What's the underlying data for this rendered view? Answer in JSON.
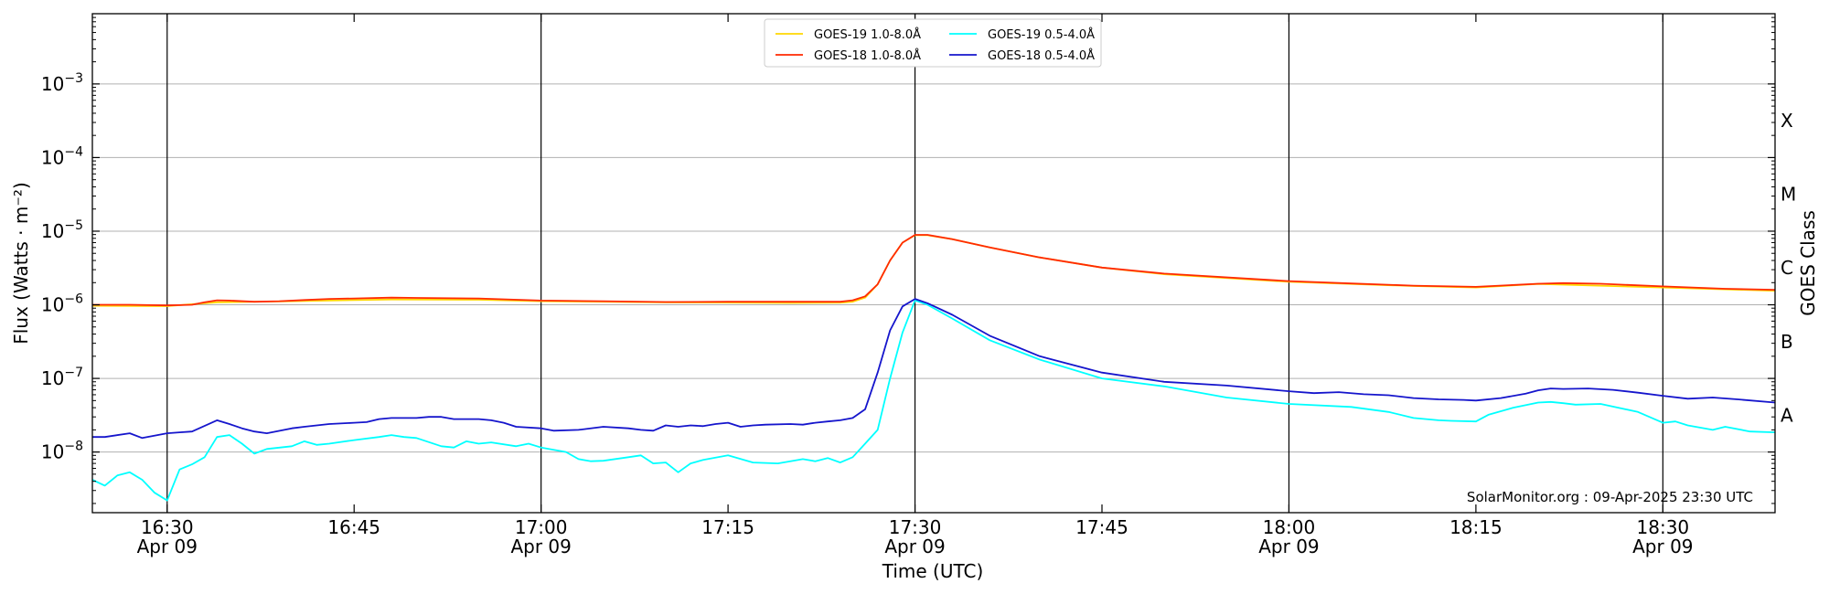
{
  "chart_data": {
    "type": "line",
    "xlabel": "Time (UTC)",
    "ylabel": "Flux (Watts · m⁻²)",
    "y2label": "GOES Class",
    "y_scale": "log",
    "ylim": [
      "1.5e-9",
      "9e-3"
    ],
    "xlim": [
      "16:24",
      "18:39"
    ],
    "grid": "horizontal at decades; vertical lines at half-hours",
    "legend_position": "top-center",
    "yticks": [
      {
        "value": 1e-08,
        "base": "10",
        "exp": "−8"
      },
      {
        "value": 1e-07,
        "base": "10",
        "exp": "−7"
      },
      {
        "value": 1e-06,
        "base": "10",
        "exp": "−6"
      },
      {
        "value": 1e-05,
        "base": "10",
        "exp": "−5"
      },
      {
        "value": 0.0001,
        "base": "10",
        "exp": "−4"
      },
      {
        "value": 0.001,
        "base": "10",
        "exp": "−3"
      }
    ],
    "xticks": [
      {
        "time": "16:30",
        "label": "16:30",
        "sub": "Apr 09"
      },
      {
        "time": "16:45",
        "label": "16:45",
        "sub": ""
      },
      {
        "time": "17:00",
        "label": "17:00",
        "sub": "Apr 09"
      },
      {
        "time": "17:15",
        "label": "17:15",
        "sub": ""
      },
      {
        "time": "17:30",
        "label": "17:30",
        "sub": "Apr 09"
      },
      {
        "time": "17:45",
        "label": "17:45",
        "sub": ""
      },
      {
        "time": "18:00",
        "label": "18:00",
        "sub": "Apr 09"
      },
      {
        "time": "18:15",
        "label": "18:15",
        "sub": ""
      },
      {
        "time": "18:30",
        "label": "18:30",
        "sub": "Apr 09"
      }
    ],
    "goes_classes": [
      {
        "label": "A",
        "value": 1e-08
      },
      {
        "label": "B",
        "value": 1e-07
      },
      {
        "label": "C",
        "value": 1e-06
      },
      {
        "label": "M",
        "value": 1e-05
      },
      {
        "label": "X",
        "value": 0.0001
      }
    ],
    "annotation": "SolarMonitor.org : 09-Apr-2025 23:30 UTC",
    "series": [
      {
        "name": "GOES-19 1.0-8.0Å",
        "color": "#ffd700",
        "x": [
          "16:24",
          "16:30",
          "16:34",
          "16:40",
          "16:48",
          "16:55",
          "17:00",
          "17:10",
          "17:20",
          "17:24",
          "17:25",
          "17:26",
          "17:27",
          "17:28",
          "17:29",
          "17:30",
          "17:31",
          "17:33",
          "17:36",
          "17:40",
          "17:45",
          "17:50",
          "18:00",
          "18:10",
          "18:15",
          "18:20",
          "18:30",
          "18:39"
        ],
        "y": [
          9.7e-07,
          9.6e-07,
          1.08e-06,
          1.12e-06,
          1.18e-06,
          1.17e-06,
          1.12e-06,
          1.08e-06,
          1.06e-06,
          1.07e-06,
          1.1e-06,
          1.25e-06,
          1.9e-06,
          4e-06,
          7e-06,
          8.8e-06,
          8.8e-06,
          7.8e-06,
          6e-06,
          4.4e-06,
          3.2e-06,
          2.6e-06,
          2.05e-06,
          1.8e-06,
          1.72e-06,
          1.92e-06,
          1.72e-06,
          1.55e-06
        ]
      },
      {
        "name": "GOES-18 1.0-8.0Å",
        "color": "#ff2a00",
        "x": [
          "16:24",
          "16:27",
          "16:30",
          "16:32",
          "16:33",
          "16:34",
          "16:35",
          "16:37",
          "16:39",
          "16:41",
          "16:43",
          "16:45",
          "16:48",
          "16:50",
          "16:55",
          "17:00",
          "17:05",
          "17:10",
          "17:15",
          "17:20",
          "17:24",
          "17:25",
          "17:26",
          "17:27",
          "17:28",
          "17:29",
          "17:30",
          "17:31",
          "17:33",
          "17:36",
          "17:40",
          "17:45",
          "17:50",
          "18:00",
          "18:05",
          "18:10",
          "18:15",
          "18:20",
          "18:22",
          "18:25",
          "18:30",
          "18:35",
          "18:39"
        ],
        "y": [
          1e-06,
          1e-06,
          9.8e-07,
          1e-06,
          1.08e-06,
          1.15e-06,
          1.14e-06,
          1.1e-06,
          1.12e-06,
          1.16e-06,
          1.2e-06,
          1.22e-06,
          1.25e-06,
          1.24e-06,
          1.22e-06,
          1.14e-06,
          1.12e-06,
          1.09e-06,
          1.1e-06,
          1.1e-06,
          1.1e-06,
          1.15e-06,
          1.3e-06,
          1.9e-06,
          4e-06,
          7e-06,
          8.9e-06,
          8.9e-06,
          7.8e-06,
          6e-06,
          4.4e-06,
          3.2e-06,
          2.65e-06,
          2.1e-06,
          1.95e-06,
          1.82e-06,
          1.75e-06,
          1.93e-06,
          1.97e-06,
          1.93e-06,
          1.78e-06,
          1.65e-06,
          1.6e-06
        ]
      },
      {
        "name": "GOES-19 0.5-4.0Å",
        "color": "#00ffff",
        "x": [
          "16:24",
          "16:25",
          "16:26",
          "16:27",
          "16:28",
          "16:29",
          "16:30",
          "16:31",
          "16:32",
          "16:33",
          "16:34",
          "16:35",
          "16:36",
          "16:37",
          "16:38",
          "16:40",
          "16:41",
          "16:42",
          "16:43",
          "16:45",
          "16:47",
          "16:48",
          "16:49",
          "16:50",
          "16:52",
          "16:53",
          "16:54",
          "16:55",
          "16:56",
          "16:58",
          "16:59",
          "17:00",
          "17:02",
          "17:03",
          "17:04",
          "17:05",
          "17:07",
          "17:08",
          "17:09",
          "17:10",
          "17:11",
          "17:12",
          "17:13",
          "17:15",
          "17:17",
          "17:19",
          "17:20",
          "17:21",
          "17:22",
          "17:23",
          "17:24",
          "17:25",
          "17:26",
          "17:27",
          "17:28",
          "17:29",
          "17:30",
          "17:31",
          "17:33",
          "17:36",
          "17:40",
          "17:45",
          "17:50",
          "17:55",
          "18:00",
          "18:05",
          "18:08",
          "18:10",
          "18:12",
          "18:13",
          "18:15",
          "18:16",
          "18:18",
          "18:20",
          "18:21",
          "18:22",
          "18:23",
          "18:25",
          "18:28",
          "18:30",
          "18:31",
          "18:32",
          "18:34",
          "18:35",
          "18:37",
          "18:39"
        ],
        "y": [
          4.2e-09,
          3.5e-09,
          4.8e-09,
          5.3e-09,
          4.2e-09,
          2.8e-09,
          2.2e-09,
          5.8e-09,
          6.8e-09,
          8.5e-09,
          1.6e-08,
          1.7e-08,
          1.3e-08,
          9.5e-09,
          1.1e-08,
          1.2e-08,
          1.4e-08,
          1.25e-08,
          1.3e-08,
          1.45e-08,
          1.6e-08,
          1.7e-08,
          1.6e-08,
          1.55e-08,
          1.2e-08,
          1.15e-08,
          1.4e-08,
          1.3e-08,
          1.35e-08,
          1.2e-08,
          1.3e-08,
          1.15e-08,
          1e-08,
          8e-09,
          7.5e-09,
          7.6e-09,
          8.5e-09,
          9e-09,
          7e-09,
          7.2e-09,
          5.3e-09,
          7e-09,
          7.8e-09,
          9e-09,
          7.2e-09,
          7e-09,
          7.5e-09,
          8e-09,
          7.5e-09,
          8.3e-09,
          7.2e-09,
          8.5e-09,
          1.3e-08,
          2e-08,
          1e-07,
          4.2e-07,
          1.15e-06,
          1e-06,
          6.5e-07,
          3.3e-07,
          1.8e-07,
          1e-07,
          7.8e-08,
          5.5e-08,
          4.5e-08,
          4.1e-08,
          3.5e-08,
          2.9e-08,
          2.7e-08,
          2.65e-08,
          2.6e-08,
          3.2e-08,
          4e-08,
          4.7e-08,
          4.8e-08,
          4.6e-08,
          4.4e-08,
          4.5e-08,
          3.5e-08,
          2.5e-08,
          2.6e-08,
          2.3e-08,
          2e-08,
          2.2e-08,
          1.9e-08,
          1.85e-08
        ]
      },
      {
        "name": "GOES-18 0.5-4.0Å",
        "color": "#1515cc",
        "x": [
          "16:24",
          "16:25",
          "16:27",
          "16:28",
          "16:30",
          "16:31",
          "16:32",
          "16:34",
          "16:35",
          "16:36",
          "16:37",
          "16:38",
          "16:40",
          "16:41",
          "16:42",
          "16:43",
          "16:45",
          "16:46",
          "16:47",
          "16:48",
          "16:50",
          "16:51",
          "16:52",
          "16:53",
          "16:55",
          "16:56",
          "16:57",
          "16:58",
          "17:00",
          "17:01",
          "17:03",
          "17:05",
          "17:07",
          "17:08",
          "17:09",
          "17:10",
          "17:11",
          "17:12",
          "17:13",
          "17:14",
          "17:15",
          "17:16",
          "17:17",
          "17:18",
          "17:20",
          "17:21",
          "17:22",
          "17:23",
          "17:24",
          "17:25",
          "17:26",
          "17:27",
          "17:28",
          "17:29",
          "17:30",
          "17:31",
          "17:33",
          "17:36",
          "17:40",
          "17:45",
          "17:50",
          "17:55",
          "18:00",
          "18:02",
          "18:04",
          "18:06",
          "18:08",
          "18:10",
          "18:12",
          "18:14",
          "18:15",
          "18:17",
          "18:19",
          "18:20",
          "18:21",
          "18:22",
          "18:24",
          "18:26",
          "18:28",
          "18:30",
          "18:32",
          "18:34",
          "18:36",
          "18:39"
        ],
        "y": [
          1.6e-08,
          1.6e-08,
          1.8e-08,
          1.55e-08,
          1.8e-08,
          1.85e-08,
          1.9e-08,
          2.7e-08,
          2.4e-08,
          2.1e-08,
          1.9e-08,
          1.8e-08,
          2.1e-08,
          2.2e-08,
          2.3e-08,
          2.4e-08,
          2.5e-08,
          2.55e-08,
          2.8e-08,
          2.9e-08,
          2.9e-08,
          3e-08,
          3e-08,
          2.8e-08,
          2.8e-08,
          2.7e-08,
          2.5e-08,
          2.2e-08,
          2.1e-08,
          1.95e-08,
          2e-08,
          2.2e-08,
          2.1e-08,
          2e-08,
          1.95e-08,
          2.3e-08,
          2.2e-08,
          2.3e-08,
          2.25e-08,
          2.4e-08,
          2.5e-08,
          2.2e-08,
          2.3e-08,
          2.35e-08,
          2.4e-08,
          2.35e-08,
          2.5e-08,
          2.6e-08,
          2.7e-08,
          2.9e-08,
          3.8e-08,
          1.2e-07,
          4.5e-07,
          9.5e-07,
          1.2e-06,
          1.05e-06,
          7.3e-07,
          3.8e-07,
          2e-07,
          1.2e-07,
          9e-08,
          8e-08,
          6.7e-08,
          6.3e-08,
          6.5e-08,
          6.1e-08,
          5.9e-08,
          5.4e-08,
          5.2e-08,
          5.1e-08,
          5e-08,
          5.4e-08,
          6.2e-08,
          6.9e-08,
          7.3e-08,
          7.2e-08,
          7.3e-08,
          7e-08,
          6.4e-08,
          5.8e-08,
          5.3e-08,
          5.5e-08,
          5.2e-08,
          4.7e-08
        ]
      }
    ]
  }
}
